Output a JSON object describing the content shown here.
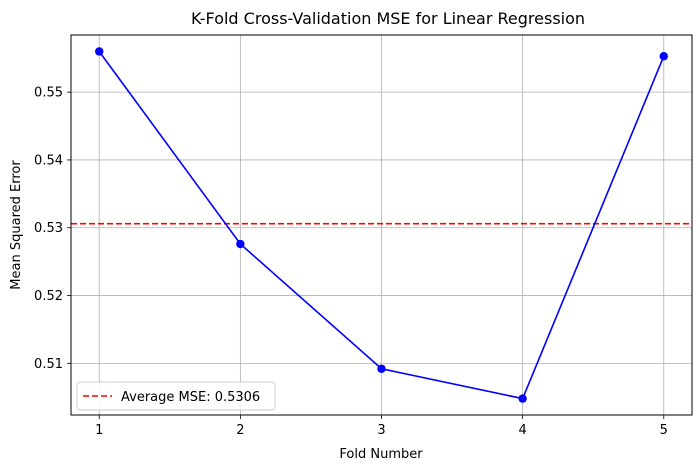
{
  "chart_data": {
    "type": "line",
    "title": "K-Fold Cross-Validation MSE for Linear Regression",
    "xlabel": "Fold Number",
    "ylabel": "Mean Squared Error",
    "x": [
      1,
      2,
      3,
      4,
      5
    ],
    "series": [
      {
        "values": [
          0.556,
          0.5276,
          0.5092,
          0.5048,
          0.5553
        ],
        "color": "#0000ff",
        "marker": "circle"
      }
    ],
    "reference_line": {
      "label": "Average MSE: 0.5306",
      "value": 0.5306,
      "color": "#ff0000",
      "style": "dashed"
    },
    "xticks": [
      "1",
      "2",
      "3",
      "4",
      "5"
    ],
    "yticks": [
      "0.51",
      "0.52",
      "0.53",
      "0.54",
      "0.55"
    ],
    "ytick_values": [
      0.51,
      0.52,
      0.53,
      0.54,
      0.55
    ],
    "xlim": [
      0.8,
      5.2
    ],
    "ylim": [
      0.50238,
      0.55843
    ],
    "grid": true,
    "legend_position": "lower-left"
  }
}
